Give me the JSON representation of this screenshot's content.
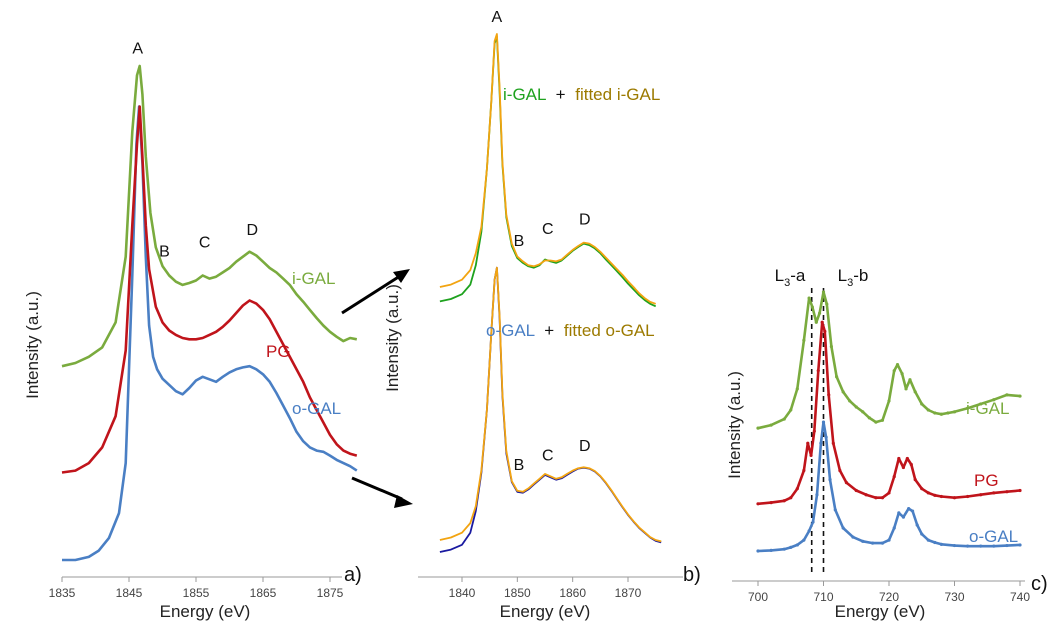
{
  "colors": {
    "i_gal": "#7aab3e",
    "pg": "#c0141b",
    "o_gal": "#4a7fc4",
    "green_fit": "#1ea21e",
    "fitted": "#9c7a00",
    "blue_fit": "#1a1aa0",
    "orange_fit": "#f2a411"
  },
  "chart_data": [
    {
      "type": "line",
      "panel_label": "a)",
      "xlabel": "Energy (eV)",
      "ylabel": "Intensity (a.u.)",
      "xlim": [
        1835,
        1880
      ],
      "xticks": [
        "1835",
        "1845",
        "1855",
        "1865",
        "1875"
      ],
      "peak_labels": [
        {
          "text": "A",
          "x": 1846.3,
          "y": 7.05
        },
        {
          "text": "B",
          "x": 1850.3,
          "y": 3.8
        },
        {
          "text": "C",
          "x": 1856.3,
          "y": 3.95
        },
        {
          "text": "D",
          "x": 1863.4,
          "y": 4.15
        }
      ],
      "series": [
        {
          "name": "i-GAL",
          "x": [
            1835,
            1837,
            1839,
            1841,
            1843,
            1844.5,
            1845.5,
            1846.2,
            1846.6,
            1847,
            1847.5,
            1848.2,
            1849,
            1850,
            1851,
            1852,
            1853,
            1854,
            1855,
            1856,
            1857,
            1858,
            1859,
            1860,
            1861,
            1862,
            1863,
            1864,
            1865,
            1866,
            1867,
            1868,
            1869,
            1870,
            1871,
            1872,
            1873,
            1874,
            1875,
            1876,
            1877,
            1878,
            1879
          ],
          "y": [
            2.05,
            2.1,
            2.2,
            2.35,
            2.75,
            3.8,
            5.8,
            6.7,
            6.85,
            6.4,
            5.4,
            4.5,
            3.95,
            3.65,
            3.5,
            3.4,
            3.35,
            3.38,
            3.42,
            3.5,
            3.45,
            3.48,
            3.55,
            3.62,
            3.72,
            3.8,
            3.88,
            3.82,
            3.72,
            3.62,
            3.55,
            3.45,
            3.35,
            3.2,
            3.08,
            2.95,
            2.82,
            2.7,
            2.6,
            2.52,
            2.45,
            2.5,
            2.48
          ]
        },
        {
          "name": "PG",
          "x": [
            1835,
            1837,
            1839,
            1841,
            1843,
            1844.5,
            1845.5,
            1846.2,
            1846.6,
            1847,
            1847.5,
            1848,
            1849,
            1850,
            1851,
            1852,
            1853,
            1854,
            1855,
            1856,
            1857,
            1858,
            1859,
            1860,
            1861,
            1862,
            1863,
            1864,
            1865,
            1866,
            1867,
            1868,
            1869,
            1870,
            1871,
            1872,
            1873,
            1874,
            1875,
            1876,
            1877,
            1878,
            1879
          ],
          "y": [
            0.35,
            0.38,
            0.5,
            0.75,
            1.25,
            2.3,
            4.3,
            5.6,
            6.2,
            5.4,
            4.3,
            3.6,
            3.0,
            2.75,
            2.62,
            2.55,
            2.5,
            2.48,
            2.48,
            2.5,
            2.55,
            2.6,
            2.68,
            2.78,
            2.9,
            3.02,
            3.1,
            3.05,
            2.95,
            2.8,
            2.6,
            2.4,
            2.2,
            2.0,
            1.8,
            1.55,
            1.35,
            1.15,
            0.95,
            0.8,
            0.7,
            0.65,
            0.62
          ]
        },
        {
          "name": "o-GAL",
          "x": [
            1835,
            1837,
            1839,
            1840.5,
            1842,
            1843.5,
            1844.5,
            1845.5,
            1846.1,
            1846.5,
            1847,
            1847.5,
            1848,
            1848.6,
            1849.2,
            1850,
            1851,
            1852,
            1853,
            1854,
            1855,
            1856,
            1857,
            1858,
            1859,
            1860,
            1861,
            1862,
            1863,
            1864,
            1865,
            1866,
            1867,
            1868,
            1869,
            1870,
            1871,
            1872,
            1873,
            1874,
            1875,
            1876,
            1877,
            1878,
            1879
          ],
          "y": [
            -1.05,
            -1.05,
            -1.0,
            -0.9,
            -0.7,
            -0.3,
            0.5,
            3.5,
            5.6,
            6.2,
            5.3,
            3.8,
            2.7,
            2.2,
            2.0,
            1.85,
            1.75,
            1.65,
            1.6,
            1.7,
            1.82,
            1.88,
            1.84,
            1.8,
            1.88,
            1.95,
            2.0,
            2.03,
            2.05,
            2.0,
            1.92,
            1.8,
            1.62,
            1.42,
            1.22,
            1.0,
            0.85,
            0.75,
            0.7,
            0.68,
            0.62,
            0.55,
            0.5,
            0.45,
            0.38
          ]
        }
      ]
    },
    {
      "type": "line",
      "panel_label": "b)",
      "xlabel": "Energy (eV)",
      "ylabel": "Intensity (a.u.)",
      "xlim": [
        1835,
        1877
      ],
      "xticks": [
        "1840",
        "1850",
        "1860",
        "1870"
      ],
      "top_legend": {
        "part1": "i-GAL",
        "plus": "+",
        "part2": "fitted i-GAL"
      },
      "bottom_legend": {
        "part1": "o-GAL",
        "plus": "+",
        "part2": "fitted o-GAL"
      },
      "peak_labels": [
        {
          "text": "A",
          "x": 1846.3,
          "y": 10.65
        },
        {
          "text": "B",
          "x": 1850.3,
          "y": 6.0
        },
        {
          "text": "C",
          "x": 1855.5,
          "y": 6.25
        },
        {
          "text": "D",
          "x": 1862.2,
          "y": 6.45
        },
        {
          "text": "B",
          "x": 1850.3,
          "y": 1.35
        },
        {
          "text": "C",
          "x": 1855.5,
          "y": 1.55
        },
        {
          "text": "D",
          "x": 1862.2,
          "y": 1.75
        }
      ],
      "series": [
        {
          "name": "i-GAL",
          "x": [
            1836,
            1838,
            1840,
            1841.5,
            1842.5,
            1843.5,
            1844.5,
            1845.3,
            1845.9,
            1846.3,
            1846.8,
            1847.3,
            1848,
            1849,
            1850,
            1851,
            1852,
            1853,
            1854,
            1855,
            1856,
            1857,
            1858,
            1859,
            1860,
            1861,
            1862,
            1863,
            1864,
            1865,
            1866,
            1867,
            1868,
            1869,
            1870,
            1871,
            1872,
            1873,
            1874,
            1875
          ],
          "y": [
            4.85,
            4.9,
            5.0,
            5.2,
            5.6,
            6.3,
            7.6,
            9.0,
            10.2,
            10.35,
            9.2,
            7.7,
            6.6,
            6.0,
            5.75,
            5.65,
            5.58,
            5.55,
            5.6,
            5.72,
            5.68,
            5.65,
            5.7,
            5.8,
            5.9,
            5.98,
            6.05,
            6.02,
            5.95,
            5.85,
            5.72,
            5.6,
            5.48,
            5.35,
            5.22,
            5.1,
            4.98,
            4.88,
            4.8,
            4.75
          ]
        },
        {
          "name": "fitted i-GAL",
          "x": [
            1836,
            1838,
            1840,
            1841.5,
            1842.5,
            1843.5,
            1844.5,
            1845.3,
            1845.9,
            1846.3,
            1846.8,
            1847.3,
            1848,
            1849,
            1850,
            1851,
            1852,
            1853,
            1854,
            1855,
            1856,
            1857,
            1858,
            1859,
            1860,
            1861,
            1862,
            1863,
            1864,
            1865,
            1866,
            1867,
            1868,
            1869,
            1870,
            1871,
            1872,
            1873,
            1874,
            1875
          ],
          "y": [
            5.15,
            5.2,
            5.3,
            5.5,
            5.85,
            6.4,
            7.6,
            9.0,
            10.25,
            10.4,
            9.3,
            7.75,
            6.65,
            6.05,
            5.78,
            5.68,
            5.6,
            5.58,
            5.62,
            5.7,
            5.7,
            5.68,
            5.72,
            5.82,
            5.92,
            6.0,
            6.07,
            6.05,
            5.98,
            5.88,
            5.76,
            5.64,
            5.52,
            5.4,
            5.27,
            5.15,
            5.02,
            4.92,
            4.84,
            4.8
          ]
        },
        {
          "name": "o-GAL",
          "x": [
            1836,
            1838,
            1840,
            1841.5,
            1842.5,
            1843.5,
            1844.5,
            1845.3,
            1845.9,
            1846.3,
            1846.8,
            1847.3,
            1848,
            1849,
            1850,
            1851,
            1852,
            1853,
            1854,
            1855,
            1856,
            1857,
            1858,
            1859,
            1860,
            1861,
            1862,
            1863,
            1864,
            1865,
            1866,
            1867,
            1868,
            1869,
            1870,
            1871,
            1872,
            1873,
            1874,
            1875,
            1876
          ],
          "y": [
            -0.35,
            -0.3,
            -0.2,
            0.05,
            0.5,
            1.3,
            2.6,
            4.2,
            5.3,
            5.55,
            4.5,
            2.9,
            1.7,
            1.1,
            0.9,
            0.88,
            0.95,
            1.05,
            1.15,
            1.25,
            1.2,
            1.15,
            1.18,
            1.25,
            1.32,
            1.38,
            1.4,
            1.38,
            1.32,
            1.22,
            1.08,
            0.92,
            0.75,
            0.58,
            0.42,
            0.28,
            0.15,
            0.05,
            -0.05,
            -0.12,
            -0.15
          ]
        },
        {
          "name": "fitted o-GAL",
          "x": [
            1836,
            1838,
            1840,
            1841.5,
            1842.5,
            1843.5,
            1844.5,
            1845.3,
            1845.9,
            1846.3,
            1846.8,
            1847.3,
            1848,
            1849,
            1850,
            1851,
            1852,
            1853,
            1854,
            1855,
            1856,
            1857,
            1858,
            1859,
            1860,
            1861,
            1862,
            1863,
            1864,
            1865,
            1866,
            1867,
            1868,
            1869,
            1870,
            1871,
            1872,
            1873,
            1874,
            1875,
            1876
          ],
          "y": [
            -0.1,
            -0.05,
            0.05,
            0.25,
            0.6,
            1.35,
            2.6,
            4.2,
            5.3,
            5.55,
            4.55,
            2.95,
            1.75,
            1.12,
            0.92,
            0.9,
            0.97,
            1.07,
            1.17,
            1.27,
            1.22,
            1.17,
            1.2,
            1.27,
            1.34,
            1.39,
            1.41,
            1.39,
            1.33,
            1.23,
            1.09,
            0.93,
            0.76,
            0.59,
            0.43,
            0.29,
            0.16,
            0.06,
            -0.04,
            -0.1,
            -0.13
          ]
        }
      ]
    },
    {
      "type": "line",
      "panel_label": "c)",
      "xlabel": "Energy (eV)",
      "ylabel": "Intensity (a.u.)",
      "xlim": [
        700,
        740
      ],
      "xticks": [
        "700",
        "710",
        "720",
        "730",
        "740"
      ],
      "dashed_lines_x": [
        708.2,
        710.0
      ],
      "top_labels": [
        {
          "main": "L",
          "sub": "3",
          "suffix": "-a"
        },
        {
          "main": "L",
          "sub": "3",
          "suffix": "-b"
        }
      ],
      "series": [
        {
          "name": "i-GAL",
          "x": [
            700,
            702,
            704,
            705,
            706,
            707,
            707.8,
            708.3,
            708.9,
            709.4,
            710,
            710.5,
            711.2,
            712,
            713,
            714,
            715,
            716,
            717,
            718,
            719,
            720,
            720.8,
            721.3,
            722,
            722.6,
            723.2,
            724,
            725,
            726,
            727,
            728,
            729,
            730,
            732,
            734,
            736,
            738,
            740
          ],
          "y": [
            2.45,
            2.5,
            2.6,
            2.75,
            3.1,
            3.9,
            4.6,
            4.45,
            4.2,
            4.35,
            4.7,
            4.5,
            3.8,
            3.3,
            3.05,
            2.9,
            2.8,
            2.72,
            2.62,
            2.55,
            2.58,
            2.9,
            3.4,
            3.5,
            3.35,
            3.1,
            3.25,
            3.05,
            2.85,
            2.75,
            2.7,
            2.68,
            2.7,
            2.72,
            2.78,
            2.85,
            2.92,
            3.0,
            2.98
          ]
        },
        {
          "name": "PG",
          "x": [
            700,
            702,
            704,
            705,
            706,
            707,
            707.6,
            708.1,
            708.6,
            709.2,
            709.8,
            710.2,
            710.8,
            711.5,
            712.5,
            713.5,
            715,
            716.5,
            718,
            719,
            720,
            720.8,
            721.5,
            722.2,
            722.8,
            723.4,
            724,
            725,
            726,
            727,
            728,
            730,
            732,
            734,
            736,
            738,
            740
          ],
          "y": [
            1.2,
            1.22,
            1.25,
            1.3,
            1.45,
            1.75,
            2.2,
            2.0,
            2.4,
            3.4,
            4.2,
            4.05,
            3.0,
            2.2,
            1.75,
            1.55,
            1.42,
            1.35,
            1.3,
            1.3,
            1.38,
            1.65,
            1.95,
            1.8,
            1.95,
            1.85,
            1.6,
            1.45,
            1.38,
            1.34,
            1.32,
            1.3,
            1.32,
            1.35,
            1.38,
            1.4,
            1.42
          ]
        },
        {
          "name": "o-GAL",
          "x": [
            700,
            702,
            704,
            705,
            706,
            707,
            707.8,
            708.4,
            709,
            709.6,
            710,
            710.4,
            711,
            711.8,
            713,
            714.5,
            716,
            717.5,
            719,
            720,
            720.8,
            721.5,
            722.2,
            723,
            723.6,
            724.3,
            725,
            726,
            727,
            728,
            730,
            732,
            734,
            736,
            738,
            740
          ],
          "y": [
            0.42,
            0.43,
            0.45,
            0.48,
            0.52,
            0.6,
            0.75,
            0.9,
            1.35,
            2.2,
            2.55,
            2.3,
            1.6,
            1.1,
            0.8,
            0.65,
            0.58,
            0.55,
            0.55,
            0.6,
            0.8,
            1.05,
            0.98,
            1.12,
            1.08,
            0.85,
            0.7,
            0.6,
            0.56,
            0.53,
            0.51,
            0.5,
            0.5,
            0.5,
            0.51,
            0.52
          ]
        }
      ]
    }
  ]
}
